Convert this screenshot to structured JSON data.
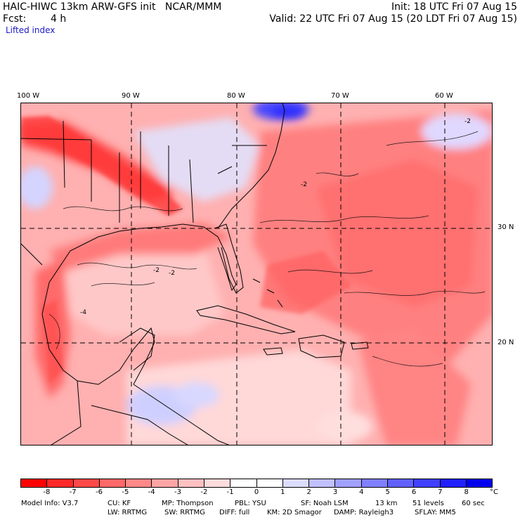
{
  "header": {
    "title": "HAIC-HIWC 13km ARW-GFS init   NCAR/MMM",
    "init": "Init: 18 UTC Fri 07 Aug 15",
    "fcst_label": "Fcst:",
    "fcst_value": "4 h",
    "valid": "Valid: 22 UTC Fri 07 Aug 15 (20 LDT Fri 07 Aug 15)"
  },
  "field": "Lifted index",
  "map": {
    "lon_labels": [
      "100 W",
      "90 W",
      "80 W",
      "70 W",
      "60 W"
    ],
    "lat_labels": [
      "30 N",
      "20 N"
    ],
    "contour_labels": [
      "-2",
      "-2",
      "-4",
      "-2",
      "-2"
    ]
  },
  "colorbar": {
    "colors": [
      "#ff0000",
      "#ff2828",
      "#ff4848",
      "#ff6868",
      "#ff8888",
      "#ffa4a4",
      "#ffc0c0",
      "#ffdcdc",
      "#ffffff",
      "#ffffff",
      "#dcdcff",
      "#c0c0ff",
      "#a0a0ff",
      "#8080ff",
      "#6060ff",
      "#4040ff",
      "#2020ff",
      "#0000ee"
    ],
    "labels": [
      "-8",
      "-7",
      "-6",
      "-5",
      "-4",
      "-3",
      "-2",
      "-1",
      "0",
      "1",
      "2",
      "3",
      "4",
      "5",
      "6",
      "7",
      "8"
    ],
    "unit": "°C"
  },
  "footer": {
    "line1": [
      "Model Info: V3.7",
      "CU: KF",
      "MP: Thompson",
      "PBL: YSU",
      "SF: Noah LSM",
      "13 km",
      "51 levels",
      "60 sec"
    ],
    "line2": [
      "LW: RRTMG",
      "SW: RRTMG",
      "DIFF: full",
      "KM: 2D Smagor",
      "DAMP: Rayleigh3",
      "SFLAY: MM5"
    ]
  }
}
